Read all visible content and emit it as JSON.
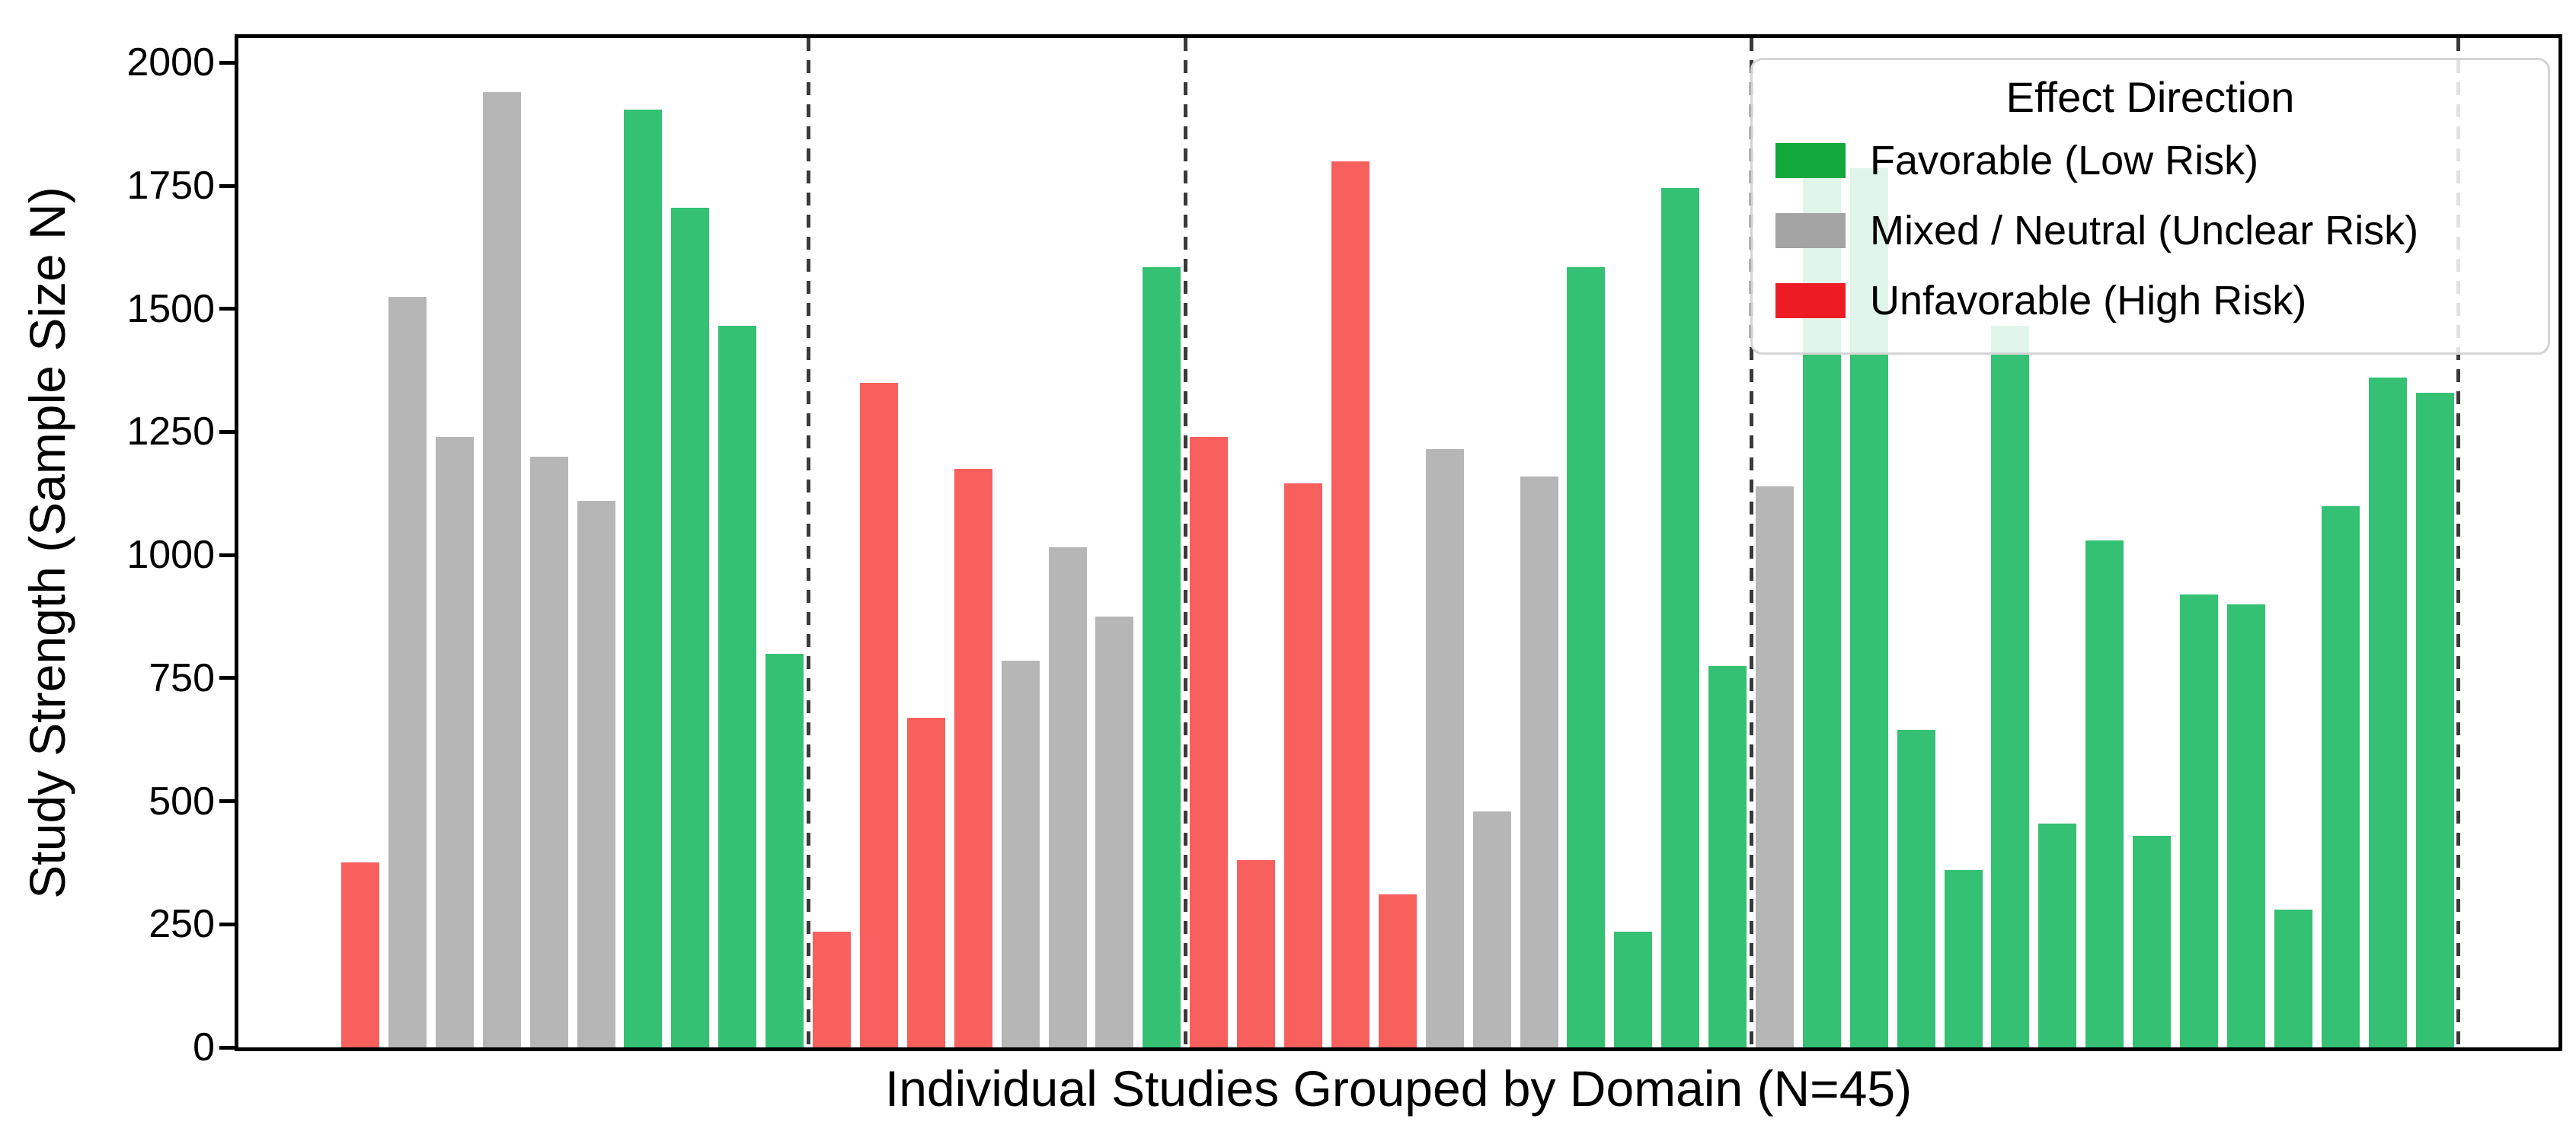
{
  "chart_data": {
    "type": "bar",
    "title": "",
    "xlabel": "Individual Studies Grouped by Domain (N=45)",
    "ylabel": "Study Strength (Sample Size N)",
    "ylim": [
      0,
      2050
    ],
    "yticks": [
      "0",
      "250",
      "500",
      "750",
      "1000",
      "1250",
      "1500",
      "1750",
      "2000"
    ],
    "ytick_values": [
      0,
      250,
      500,
      750,
      1000,
      1250,
      1500,
      1750,
      2000
    ],
    "grid": false,
    "legend": {
      "title": "Effect Direction",
      "position": "upper right",
      "entries": [
        {
          "key": "favorable",
          "label": "Favorable (Low Risk)",
          "color": "#12a83c"
        },
        {
          "key": "neutral",
          "label": "Mixed / Neutral (Unclear Risk)",
          "color": "#a4a4a4"
        },
        {
          "key": "unfavorable",
          "label": "Unfavorable (High Risk)",
          "color": "#ed1c24"
        }
      ]
    },
    "bar_colors": {
      "favorable": "#34c173",
      "neutral": "#b6b6b6",
      "unfavorable": "#f8605e"
    },
    "separator_color": "#3a3a3a",
    "separators_after_index": [
      9,
      17,
      29,
      44
    ],
    "group_sizes": [
      10,
      8,
      12,
      15
    ],
    "bars": [
      {
        "n": 375,
        "effect": "unfavorable"
      },
      {
        "n": 1525,
        "effect": "neutral"
      },
      {
        "n": 1240,
        "effect": "neutral"
      },
      {
        "n": 1940,
        "effect": "neutral"
      },
      {
        "n": 1200,
        "effect": "neutral"
      },
      {
        "n": 1110,
        "effect": "neutral"
      },
      {
        "n": 1905,
        "effect": "favorable"
      },
      {
        "n": 1705,
        "effect": "favorable"
      },
      {
        "n": 1465,
        "effect": "favorable"
      },
      {
        "n": 800,
        "effect": "favorable"
      },
      {
        "n": 235,
        "effect": "unfavorable"
      },
      {
        "n": 1350,
        "effect": "unfavorable"
      },
      {
        "n": 670,
        "effect": "unfavorable"
      },
      {
        "n": 1175,
        "effect": "unfavorable"
      },
      {
        "n": 785,
        "effect": "neutral"
      },
      {
        "n": 1015,
        "effect": "neutral"
      },
      {
        "n": 875,
        "effect": "neutral"
      },
      {
        "n": 1585,
        "effect": "favorable"
      },
      {
        "n": 1240,
        "effect": "unfavorable"
      },
      {
        "n": 380,
        "effect": "unfavorable"
      },
      {
        "n": 1145,
        "effect": "unfavorable"
      },
      {
        "n": 1800,
        "effect": "unfavorable"
      },
      {
        "n": 310,
        "effect": "unfavorable"
      },
      {
        "n": 1215,
        "effect": "neutral"
      },
      {
        "n": 480,
        "effect": "neutral"
      },
      {
        "n": 1160,
        "effect": "neutral"
      },
      {
        "n": 1585,
        "effect": "favorable"
      },
      {
        "n": 235,
        "effect": "favorable"
      },
      {
        "n": 1745,
        "effect": "favorable"
      },
      {
        "n": 775,
        "effect": "favorable"
      },
      {
        "n": 1140,
        "effect": "neutral"
      },
      {
        "n": 1770,
        "effect": "favorable"
      },
      {
        "n": 1785,
        "effect": "favorable"
      },
      {
        "n": 645,
        "effect": "favorable"
      },
      {
        "n": 360,
        "effect": "favorable"
      },
      {
        "n": 1465,
        "effect": "favorable"
      },
      {
        "n": 455,
        "effect": "favorable"
      },
      {
        "n": 1030,
        "effect": "favorable"
      },
      {
        "n": 430,
        "effect": "favorable"
      },
      {
        "n": 920,
        "effect": "favorable"
      },
      {
        "n": 900,
        "effect": "favorable"
      },
      {
        "n": 280,
        "effect": "favorable"
      },
      {
        "n": 1100,
        "effect": "favorable"
      },
      {
        "n": 1360,
        "effect": "favorable"
      },
      {
        "n": 1330,
        "effect": "favorable"
      }
    ]
  }
}
